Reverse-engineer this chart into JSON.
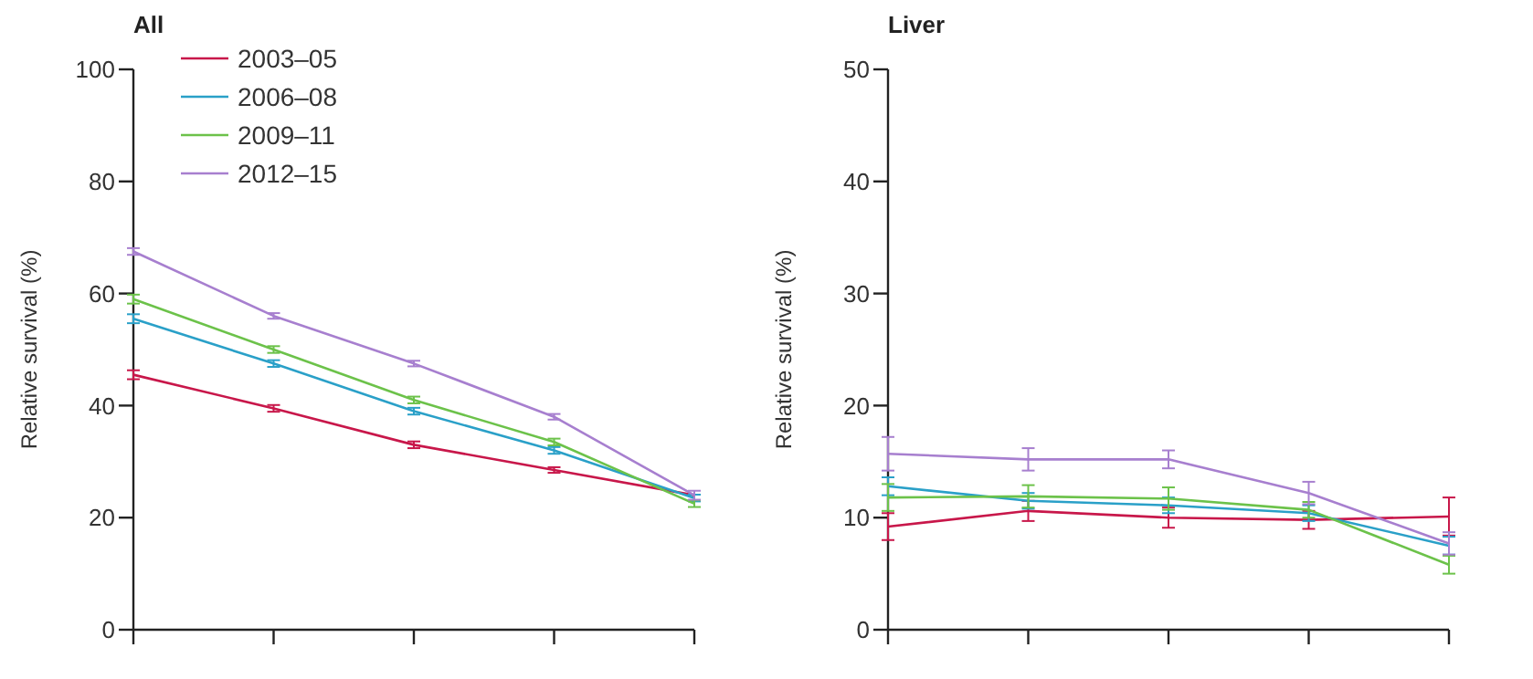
{
  "chart_data": [
    {
      "type": "line",
      "title": "All",
      "ylabel": "Relative survival (%)",
      "categories": [
        null,
        null,
        null,
        null,
        null
      ],
      "ylim": [
        0,
        100
      ],
      "yticks": [
        0,
        20,
        40,
        60,
        80,
        100
      ],
      "legend": "top left",
      "grid": false,
      "tick_labels": "y",
      "series": [
        {
          "name": "2003–05",
          "color": "#c8174a",
          "values": [
            45.5,
            39.5,
            33,
            28.5,
            24
          ],
          "errors": [
            0.8,
            0.6,
            0.6,
            0.5,
            null
          ]
        },
        {
          "name": "2006–08",
          "color": "#2aa0c8",
          "values": [
            55.5,
            47.5,
            39,
            32,
            23.5
          ],
          "errors": [
            0.8,
            0.6,
            0.6,
            0.6,
            0.6
          ]
        },
        {
          "name": "2009–11",
          "color": "#6cc24a",
          "values": [
            59,
            50,
            41,
            33.5,
            22.5
          ],
          "errors": [
            0.8,
            0.6,
            0.6,
            0.6,
            0.6
          ]
        },
        {
          "name": "2012–15",
          "color": "#a77fcf",
          "values": [
            67.5,
            56,
            47.5,
            38,
            24
          ],
          "errors": [
            0.6,
            0.5,
            0.5,
            0.5,
            0.8
          ]
        }
      ]
    },
    {
      "type": "line",
      "title": "Liver",
      "ylabel": "Relative survival (%)",
      "categories": [
        null,
        null,
        null,
        null,
        null
      ],
      "ylim": [
        0,
        50
      ],
      "yticks": [
        0,
        10,
        20,
        30,
        40,
        50
      ],
      "legend": false,
      "grid": false,
      "tick_labels": "y",
      "series": [
        {
          "color": "#c8174a",
          "values": [
            9.2,
            10.6,
            10,
            9.8,
            10.1
          ],
          "errors": [
            1.2,
            0.9,
            0.9,
            0.8,
            1.7
          ]
        },
        {
          "color": "#2aa0c8",
          "values": [
            12.8,
            11.5,
            11.1,
            10.4,
            7.5
          ],
          "errors": [
            0.8,
            0.7,
            0.7,
            0.7,
            0.8
          ]
        },
        {
          "color": "#6cc24a",
          "values": [
            11.8,
            11.9,
            11.7,
            10.7,
            5.8
          ],
          "errors": [
            1.2,
            1,
            1,
            0.7,
            0.8
          ]
        },
        {
          "color": "#a77fcf",
          "values": [
            15.7,
            15.2,
            15.2,
            12.2,
            7.7
          ],
          "errors": [
            1.5,
            1,
            0.8,
            1,
            1
          ]
        }
      ]
    }
  ]
}
